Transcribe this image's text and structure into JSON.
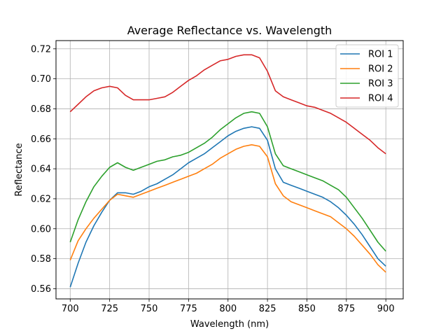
{
  "chart_data": {
    "type": "line",
    "title": "Average Reflectance vs. Wavelength",
    "xlabel": "Wavelength (nm)",
    "ylabel": "Reflectance",
    "xlim": [
      691,
      911
    ],
    "ylim": [
      0.5532,
      0.7255
    ],
    "xticks": [
      700,
      725,
      750,
      775,
      800,
      825,
      850,
      875,
      900
    ],
    "yticks": [
      0.56,
      0.58,
      0.6,
      0.62,
      0.64,
      0.66,
      0.68,
      0.7,
      0.72
    ],
    "xtick_labels": [
      "700",
      "725",
      "750",
      "775",
      "800",
      "825",
      "850",
      "875",
      "900"
    ],
    "ytick_labels": [
      "0.56",
      "0.58",
      "0.60",
      "0.62",
      "0.64",
      "0.66",
      "0.68",
      "0.70",
      "0.72"
    ],
    "grid": true,
    "legend_position": "top-right",
    "x": [
      700,
      705,
      710,
      715,
      720,
      725,
      730,
      735,
      740,
      745,
      750,
      755,
      760,
      765,
      770,
      775,
      780,
      785,
      790,
      795,
      800,
      805,
      810,
      815,
      820,
      825,
      830,
      835,
      840,
      845,
      850,
      855,
      860,
      865,
      870,
      875,
      880,
      885,
      890,
      895,
      900
    ],
    "series": [
      {
        "name": "ROI 1",
        "color": "#1f77b4",
        "values": [
          0.561,
          0.577,
          0.591,
          0.602,
          0.611,
          0.619,
          0.624,
          0.624,
          0.623,
          0.625,
          0.628,
          0.63,
          0.633,
          0.636,
          0.64,
          0.644,
          0.647,
          0.65,
          0.654,
          0.658,
          0.662,
          0.665,
          0.667,
          0.668,
          0.667,
          0.659,
          0.64,
          0.631,
          0.629,
          0.627,
          0.625,
          0.623,
          0.621,
          0.618,
          0.614,
          0.609,
          0.603,
          0.596,
          0.588,
          0.58,
          0.575
        ]
      },
      {
        "name": "ROI 2",
        "color": "#ff7f0e",
        "values": [
          0.579,
          0.592,
          0.6,
          0.607,
          0.613,
          0.619,
          0.623,
          0.622,
          0.621,
          0.623,
          0.625,
          0.627,
          0.629,
          0.631,
          0.633,
          0.635,
          0.637,
          0.64,
          0.643,
          0.647,
          0.65,
          0.653,
          0.655,
          0.656,
          0.655,
          0.648,
          0.63,
          0.622,
          0.618,
          0.616,
          0.614,
          0.612,
          0.61,
          0.608,
          0.604,
          0.6,
          0.595,
          0.589,
          0.583,
          0.576,
          0.571
        ]
      },
      {
        "name": "ROI 3",
        "color": "#2ca02c",
        "values": [
          0.591,
          0.606,
          0.618,
          0.628,
          0.635,
          0.641,
          0.644,
          0.641,
          0.639,
          0.641,
          0.643,
          0.645,
          0.646,
          0.648,
          0.649,
          0.651,
          0.654,
          0.657,
          0.661,
          0.666,
          0.67,
          0.674,
          0.677,
          0.678,
          0.677,
          0.668,
          0.65,
          0.642,
          0.64,
          0.638,
          0.636,
          0.634,
          0.632,
          0.629,
          0.626,
          0.621,
          0.614,
          0.607,
          0.599,
          0.591,
          0.585
        ]
      },
      {
        "name": "ROI 4",
        "color": "#d62728",
        "values": [
          0.678,
          0.683,
          0.688,
          0.692,
          0.694,
          0.695,
          0.694,
          0.689,
          0.686,
          0.686,
          0.686,
          0.687,
          0.688,
          0.691,
          0.695,
          0.699,
          0.702,
          0.706,
          0.709,
          0.712,
          0.713,
          0.715,
          0.716,
          0.716,
          0.714,
          0.705,
          0.692,
          0.688,
          0.686,
          0.684,
          0.682,
          0.681,
          0.679,
          0.677,
          0.674,
          0.671,
          0.667,
          0.663,
          0.659,
          0.654,
          0.65
        ]
      }
    ]
  }
}
